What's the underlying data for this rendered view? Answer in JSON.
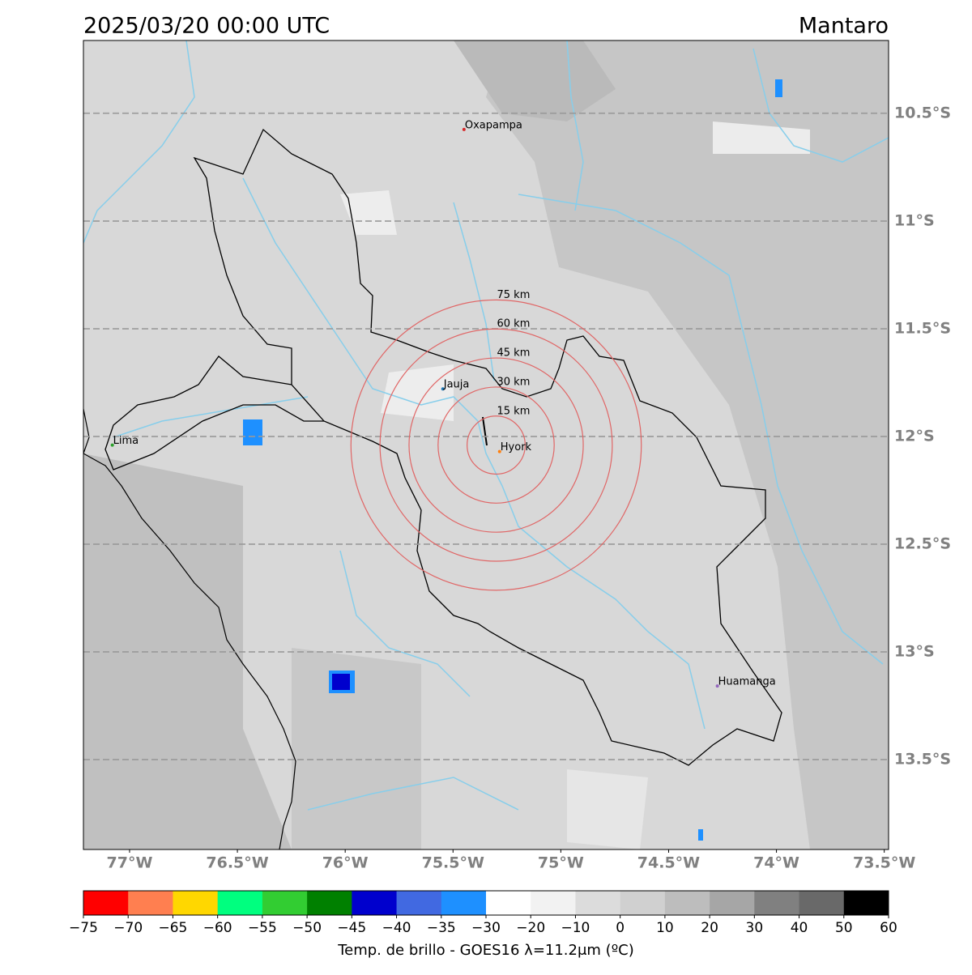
{
  "map": {
    "title": "2025/03/20 00:00 UTC",
    "region": "Mantaro",
    "lonlim": [
      -77.214,
      -73.48
    ],
    "latlim": [
      -10.162,
      -13.917
    ],
    "lat_ticks": [
      {
        "value": -10.5,
        "label": "10.5°S"
      },
      {
        "value": -11,
        "label": "11°S"
      },
      {
        "value": -11.5,
        "label": "11.5°S"
      },
      {
        "value": -12,
        "label": "12°S"
      },
      {
        "value": -12.5,
        "label": "12.5°S"
      },
      {
        "value": -13,
        "label": "13°S"
      },
      {
        "value": -13.5,
        "label": "13.5°S"
      }
    ],
    "lon_ticks": [
      {
        "value": -77,
        "label": "77°W"
      },
      {
        "value": -76.5,
        "label": "76.5°W"
      },
      {
        "value": -76,
        "label": "76°W"
      },
      {
        "value": -75.5,
        "label": "75.5°W"
      },
      {
        "value": -75,
        "label": "75°W"
      },
      {
        "value": -74.5,
        "label": "74.5°W"
      },
      {
        "value": -74,
        "label": "74°W"
      },
      {
        "value": -73.5,
        "label": "73.5°W"
      }
    ],
    "cities": [
      {
        "name": "Oxapampa",
        "lon": -75.449,
        "lat": -10.575,
        "color": "#d62728"
      },
      {
        "name": "Jauja",
        "lon": -75.547,
        "lat": -11.779,
        "color": "#1f77b4"
      },
      {
        "name": "Lima",
        "lon": -77.08,
        "lat": -12.04,
        "color": "#2ca02c"
      },
      {
        "name": "Hyork",
        "lon": -75.284,
        "lat": -12.07,
        "color": "#ff7f0e"
      },
      {
        "name": "Huamanga",
        "lon": -74.274,
        "lat": -13.158,
        "color": "#9467bd"
      }
    ],
    "rings": {
      "center_lon": -75.3,
      "center_lat": -12.04,
      "color": "#e06666",
      "radii_km": [
        {
          "value": 15,
          "label": "15 km"
        },
        {
          "value": 30,
          "label": "30 km"
        },
        {
          "value": 45,
          "label": "45 km"
        },
        {
          "value": 60,
          "label": "60 km"
        },
        {
          "value": 75,
          "label": "75 km"
        }
      ]
    }
  },
  "colorbar": {
    "label": "Temp. de brillo - GOES16 λ=11.2μm (ºC)",
    "ticks": [
      {
        "value": -75,
        "label": "−75"
      },
      {
        "value": -70,
        "label": "−70"
      },
      {
        "value": -65,
        "label": "−65"
      },
      {
        "value": -60,
        "label": "−60"
      },
      {
        "value": -55,
        "label": "−55"
      },
      {
        "value": -50,
        "label": "−50"
      },
      {
        "value": -45,
        "label": "−45"
      },
      {
        "value": -40,
        "label": "−40"
      },
      {
        "value": -35,
        "label": "−35"
      },
      {
        "value": -30,
        "label": "−30"
      },
      {
        "value": -20,
        "label": "−20"
      },
      {
        "value": -10,
        "label": "−10"
      },
      0,
      10,
      20,
      30,
      40,
      50,
      60
    ],
    "colors": [
      "#ff0000",
      "#ff7f50",
      "#ffd700",
      "#00ff7f",
      "#32cd32",
      "#008000",
      "#0000cd",
      "#4169e1",
      "#1e90ff",
      "#ffffff",
      "#f2f2f2",
      "#dcdcdc",
      "#d0d0d0",
      "#bdbdbd",
      "#a6a6a6",
      "#808080",
      "#696969",
      "#000000"
    ]
  }
}
